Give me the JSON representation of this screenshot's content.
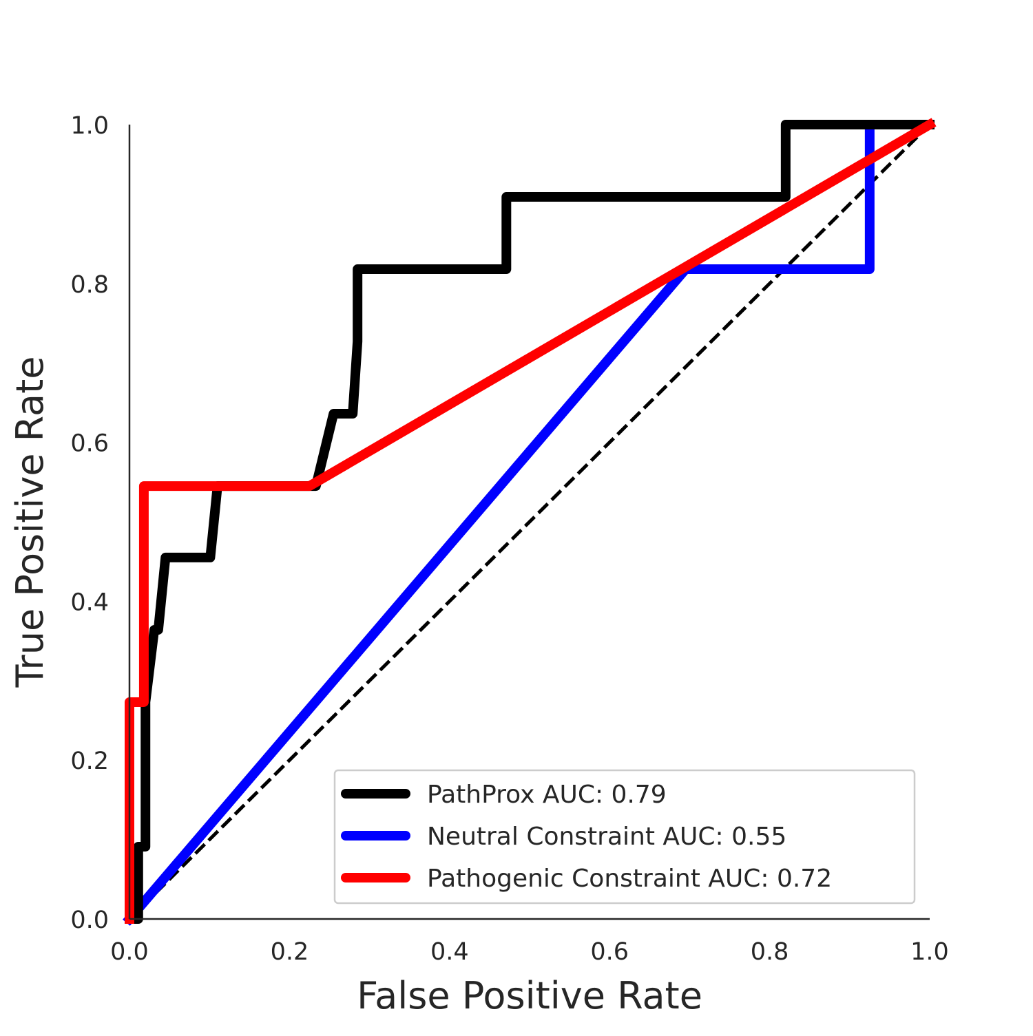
{
  "chart_data": {
    "type": "line",
    "title": "",
    "xlabel": "False Positive Rate",
    "ylabel": "True Positive Rate",
    "xlim": [
      0.0,
      1.0
    ],
    "ylim": [
      0.0,
      1.0
    ],
    "xticks": [
      "0.0",
      "0.2",
      "0.4",
      "0.6",
      "0.8",
      "1.0"
    ],
    "yticks": [
      "0.0",
      "0.2",
      "0.4",
      "0.6",
      "0.8",
      "1.0"
    ],
    "grid": false,
    "legend_position": "bottom-right",
    "series": [
      {
        "name": "PathProx AUC:  0.79",
        "color": "#000000",
        "x": [
          0.0,
          0.011,
          0.011,
          0.02,
          0.02,
          0.031,
          0.036,
          0.045,
          0.101,
          0.11,
          0.233,
          0.255,
          0.279,
          0.285,
          0.285,
          0.471,
          0.471,
          0.82,
          0.82,
          1.0
        ],
        "y": [
          0.0,
          0.0,
          0.091,
          0.091,
          0.273,
          0.364,
          0.364,
          0.455,
          0.455,
          0.545,
          0.545,
          0.636,
          0.636,
          0.727,
          0.818,
          0.818,
          0.909,
          0.909,
          1.0,
          1.0
        ]
      },
      {
        "name": "Neutral Constraint AUC:  0.55",
        "color": "#0000ff",
        "x": [
          0.0,
          0.695,
          0.925,
          0.925,
          1.0
        ],
        "y": [
          0.0,
          0.818,
          0.818,
          1.0,
          1.0
        ]
      },
      {
        "name": "Pathogenic Constraint AUC:  0.72",
        "color": "#ff0000",
        "x": [
          0.0,
          0.0,
          0.018,
          0.018,
          0.225,
          1.0
        ],
        "y": [
          0.0,
          0.273,
          0.273,
          0.545,
          0.545,
          1.0
        ]
      }
    ],
    "reference_line": {
      "x": [
        0.0,
        1.0
      ],
      "y": [
        0.0,
        1.0
      ],
      "style": "dashed",
      "color": "#000000"
    }
  }
}
